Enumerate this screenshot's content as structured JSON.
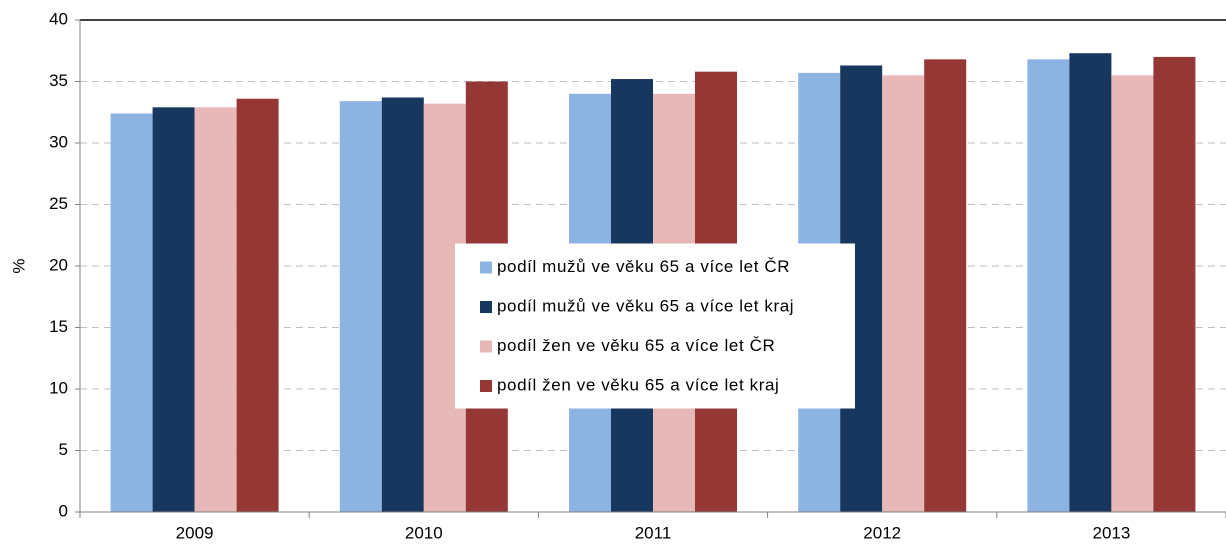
{
  "chart_data": {
    "type": "bar",
    "y_label": "%",
    "categories": [
      "2009",
      "2010",
      "2011",
      "2012",
      "2013"
    ],
    "series": [
      {
        "name": "podíl mužů ve věku 65 a více let ČR",
        "color": "#8db3e2",
        "values": [
          32.4,
          33.4,
          34.0,
          35.7,
          36.8
        ]
      },
      {
        "name": "podíl mužů ve věku 65 a více let kraj",
        "color": "#17375e",
        "values": [
          32.9,
          33.7,
          35.2,
          36.3,
          37.3
        ]
      },
      {
        "name": "podíl žen ve věku 65 a více let ČR",
        "color": "#e6b9b8",
        "values": [
          32.9,
          33.2,
          34.0,
          35.5,
          35.5
        ]
      },
      {
        "name": "podíl žen ve věku 65 a více let kraj",
        "color": "#953735",
        "values": [
          33.6,
          35.0,
          35.8,
          36.8,
          37.0
        ]
      }
    ],
    "ylim": [
      0,
      40
    ],
    "yticks": [
      0,
      5,
      10,
      15,
      20,
      25,
      30,
      35,
      40
    ],
    "grid": true,
    "legend": "center"
  }
}
